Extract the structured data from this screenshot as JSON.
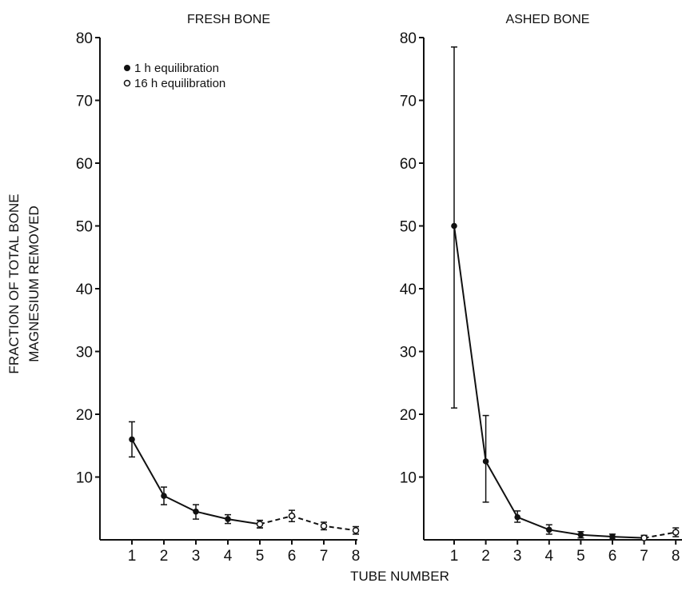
{
  "figure": {
    "ylabel_line1": "FRACTION OF TOTAL BONE",
    "ylabel_line2": "MAGNESIUM REMOVED",
    "xlabel": "TUBE NUMBER"
  },
  "legend": [
    {
      "label": "1 h  equilibration",
      "marker": "filled-circle"
    },
    {
      "label": "16 h  equilibration",
      "marker": "open-circle"
    }
  ],
  "colors": {
    "ink": "#111111",
    "background": "#ffffff"
  },
  "chart_data": [
    {
      "type": "line",
      "title": "FRESH BONE",
      "xlabel": "TUBE NUMBER",
      "ylabel": "FRACTION OF TOTAL BONE MAGNESIUM REMOVED",
      "x": [
        1,
        2,
        3,
        4,
        5,
        6,
        7,
        8
      ],
      "xticks": [
        "1",
        "2",
        "3",
        "4",
        "5",
        "6",
        "7",
        "8"
      ],
      "yticks": [
        "10",
        "20",
        "30",
        "40",
        "50",
        "60",
        "70",
        "80"
      ],
      "ylim": [
        0,
        80
      ],
      "grid": false,
      "legend_position": "top-left",
      "series": [
        {
          "marker": "filled-circle",
          "line": "solid",
          "x": [
            1,
            2,
            3,
            4,
            5
          ],
          "y": [
            16,
            7,
            4.5,
            3.3,
            2.5
          ],
          "err_low": [
            13.2,
            5.6,
            3.3,
            2.6,
            1.9
          ],
          "err_high": [
            18.8,
            8.4,
            5.6,
            4.0,
            3.1
          ]
        },
        {
          "marker": "open-circle",
          "line": "dashed",
          "x": [
            5,
            6,
            7,
            8
          ],
          "y": [
            2.5,
            3.8,
            2.2,
            1.5
          ],
          "err_low": [
            1.9,
            2.9,
            1.6,
            0.9
          ],
          "err_high": [
            3.1,
            4.7,
            2.8,
            2.1
          ]
        }
      ]
    },
    {
      "type": "line",
      "title": "ASHED BONE",
      "xlabel": "TUBE NUMBER",
      "ylabel": "FRACTION OF TOTAL BONE MAGNESIUM REMOVED",
      "x": [
        1,
        2,
        3,
        4,
        5,
        6,
        7,
        8
      ],
      "xticks": [
        "1",
        "2",
        "3",
        "4",
        "5",
        "6",
        "7",
        "8"
      ],
      "yticks": [
        "10",
        "20",
        "30",
        "40",
        "50",
        "60",
        "70",
        "80"
      ],
      "ylim": [
        0,
        80
      ],
      "grid": false,
      "series": [
        {
          "marker": "filled-circle",
          "line": "solid",
          "x": [
            1,
            2,
            3,
            4,
            5,
            6,
            7
          ],
          "y": [
            50,
            12.5,
            3.6,
            1.6,
            0.8,
            0.5,
            0.3
          ],
          "err_low": [
            21,
            6,
            2.8,
            0.9,
            0.3,
            0.1,
            0.0
          ],
          "err_high": [
            78.5,
            19.8,
            4.6,
            2.4,
            1.3,
            0.9,
            0.7
          ]
        },
        {
          "marker": "open-circle",
          "line": "dashed",
          "x": [
            7,
            8
          ],
          "y": [
            0.3,
            1.2
          ],
          "err_low": [
            0.0,
            0.5
          ],
          "err_high": [
            0.7,
            1.9
          ]
        }
      ]
    }
  ]
}
